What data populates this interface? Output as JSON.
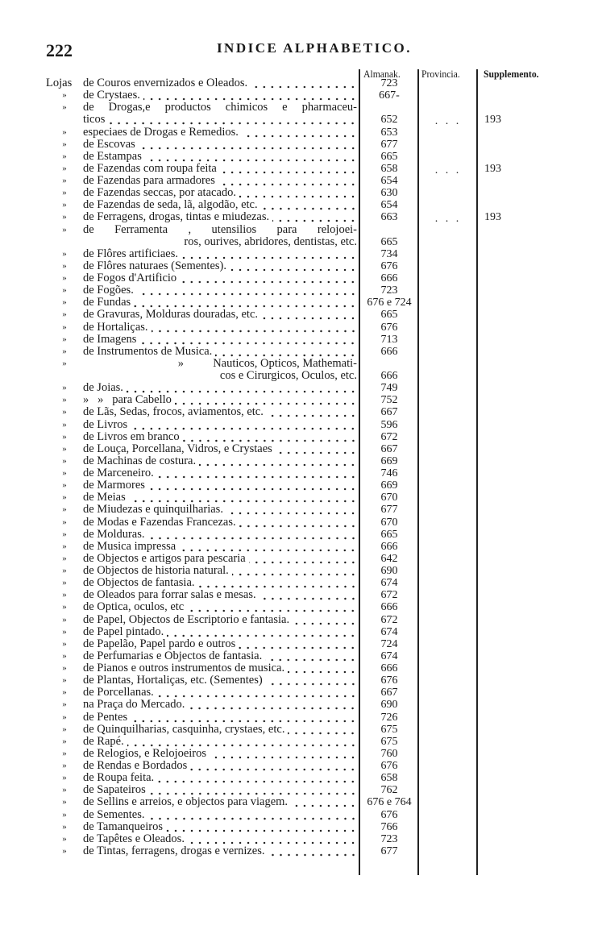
{
  "header": {
    "page_number": "222",
    "title": "INDICE ALPHABETICO."
  },
  "columns": {
    "almanak": "Almanak.",
    "provincia": "Provincia.",
    "supplemento": "Supplemento."
  },
  "rows": [
    {
      "marker": "Lojas",
      "text": "de Couros envernizados e Oleados.",
      "almanak": "723"
    },
    {
      "marker": "»",
      "text": "de Crystaes.",
      "almanak": "667-"
    },
    {
      "marker": "»",
      "text": "de Drogas,e productos chimicos e pharmaceu-"
    },
    {
      "marker": "",
      "text": "ticos",
      "almanak": "652",
      "provincia": ". . .",
      "supplemento": "193"
    },
    {
      "marker": "»",
      "text": "especiaes de Drogas e Remedios.",
      "almanak": "653"
    },
    {
      "marker": "»",
      "text": "de Escovas",
      "almanak": "677"
    },
    {
      "marker": "»",
      "text": "de Estampas",
      "almanak": "665"
    },
    {
      "marker": "»",
      "text": "de Fazendas com roupa feita",
      "almanak": "658",
      "provincia": ". . .",
      "supplemento": "193"
    },
    {
      "marker": "»",
      "text": "de Fazendas para armadores",
      "almanak": "654"
    },
    {
      "marker": "»",
      "text": "de Fazendas seccas, por atacado.",
      "almanak": "630"
    },
    {
      "marker": "»",
      "text": "de Fazendas de seda, lã, algodão, etc.",
      "almanak": "654"
    },
    {
      "marker": "»",
      "text": "de Ferragens, drogas, tintas e miudezas.",
      "almanak": "663",
      "provincia": ". . .",
      "supplemento": "193"
    },
    {
      "marker": "»",
      "text": "de Ferramenta , utensilios para relojoei-"
    },
    {
      "marker": "",
      "text": "ros, ourives, abridores, dentistas, etc.",
      "almanak": "665"
    },
    {
      "marker": "»",
      "text": "de Flôres artificiaes.",
      "almanak": "734"
    },
    {
      "marker": "»",
      "text": "de Flôres naturaes (Sementes).",
      "almanak": "676"
    },
    {
      "marker": "»",
      "text": "de Fogos d'Artificio",
      "almanak": "666"
    },
    {
      "marker": "»",
      "text": "de Fogões.",
      "almanak": "723"
    },
    {
      "marker": "»",
      "text": "de Fundas",
      "almanak": "676 e 724"
    },
    {
      "marker": "»",
      "text": "de Gravuras, Molduras douradas, etc.",
      "almanak": "665"
    },
    {
      "marker": "»",
      "text": "de Hortaliças.",
      "almanak": "676"
    },
    {
      "marker": "»",
      "text": "de Imagens",
      "almanak": "713"
    },
    {
      "marker": "»",
      "text": "de Instrumentos de Musica.",
      "almanak": "666"
    },
    {
      "marker": "»",
      "text": "»          Nauticos, Opticos, Mathemati-"
    },
    {
      "marker": "",
      "text": "cos e Cirurgicos, Oculos, etc.",
      "almanak": "666"
    },
    {
      "marker": "»",
      "text": "de Joias.",
      "almanak": "749"
    },
    {
      "marker": "»",
      "text": "»   »   para Cabello",
      "almanak": "752"
    },
    {
      "marker": "»",
      "text": "de Lãs, Sedas, frocos, aviamentos, etc.",
      "almanak": "667"
    },
    {
      "marker": "»",
      "text": "de Livros",
      "almanak": "596"
    },
    {
      "marker": "»",
      "text": "de Livros em branco",
      "almanak": "672"
    },
    {
      "marker": "»",
      "text": "de Louça, Porcellana, Vidros, e Crystaes",
      "almanak": "667"
    },
    {
      "marker": "»",
      "text": "de Machinas de costura.",
      "almanak": "669"
    },
    {
      "marker": "»",
      "text": "de Marceneiro.",
      "almanak": "746"
    },
    {
      "marker": "»",
      "text": "de Marmores",
      "almanak": "669"
    },
    {
      "marker": "»",
      "text": "de Meias",
      "almanak": "670"
    },
    {
      "marker": "»",
      "text": "de Miudezas e quinquilharias.",
      "almanak": "677"
    },
    {
      "marker": "»",
      "text": "de Modas e Fazendas Francezas.",
      "almanak": "670"
    },
    {
      "marker": "»",
      "text": "de Molduras.",
      "almanak": "665"
    },
    {
      "marker": "»",
      "text": "de Musica impressa",
      "almanak": "666"
    },
    {
      "marker": "»",
      "text": "de Objectos e artigos para pescaria",
      "almanak": "642"
    },
    {
      "marker": "»",
      "text": "de Objectos de historia natural.",
      "almanak": "690"
    },
    {
      "marker": "»",
      "text": "de Objectos de fantasia.",
      "almanak": "674"
    },
    {
      "marker": "»",
      "text": "de Oleados para forrar salas e mesas.",
      "almanak": "672"
    },
    {
      "marker": "»",
      "text": "de Optica, oculos, etc",
      "almanak": "666"
    },
    {
      "marker": "»",
      "text": "de Papel, Objectos de Escriptorio e fantasia.",
      "almanak": "672"
    },
    {
      "marker": "»",
      "text": "de Papel pintado.",
      "almanak": "674"
    },
    {
      "marker": "»",
      "text": "de Papelão, Papel pardo e outros",
      "almanak": "724"
    },
    {
      "marker": "»",
      "text": "de Perfumarias e Objectos de fantasia.",
      "almanak": "674"
    },
    {
      "marker": "»",
      "text": "de Pianos e outros instrumentos de musica.",
      "almanak": "666"
    },
    {
      "marker": "»",
      "text": "de Plantas, Hortaliças, etc. (Sementes)",
      "almanak": "676"
    },
    {
      "marker": "»",
      "text": "de Porcellanas.",
      "almanak": "667"
    },
    {
      "marker": "»",
      "text": "na Praça do Mercado.",
      "almanak": "690"
    },
    {
      "marker": "»",
      "text": "de Pentes",
      "almanak": "726"
    },
    {
      "marker": "»",
      "text": "de Quinquilharias, casquinha, crystaes, etc.",
      "almanak": "675"
    },
    {
      "marker": "»",
      "text": "de Rapé.",
      "almanak": "675"
    },
    {
      "marker": "»",
      "text": "de Relogios, e Relojoeiros",
      "almanak": "760"
    },
    {
      "marker": "»",
      "text": "de Rendas e Bordados",
      "almanak": "676"
    },
    {
      "marker": "»",
      "text": "de Roupa feita.",
      "almanak": "658"
    },
    {
      "marker": "»",
      "text": "de Sapateiros",
      "almanak": "762"
    },
    {
      "marker": "»",
      "text": "de Sellins e arreios, e objectos para viagem.",
      "almanak": "676 e 764"
    },
    {
      "marker": "»",
      "text": "de Sementes.",
      "almanak": "676"
    },
    {
      "marker": "»",
      "text": "de Tamanqueiros",
      "almanak": "766"
    },
    {
      "marker": "»",
      "text": "de Tapêtes e Oleados.",
      "almanak": "723"
    },
    {
      "marker": "»",
      "text": "de Tintas, ferragens, drogas e vernizes.",
      "almanak": "677"
    }
  ]
}
